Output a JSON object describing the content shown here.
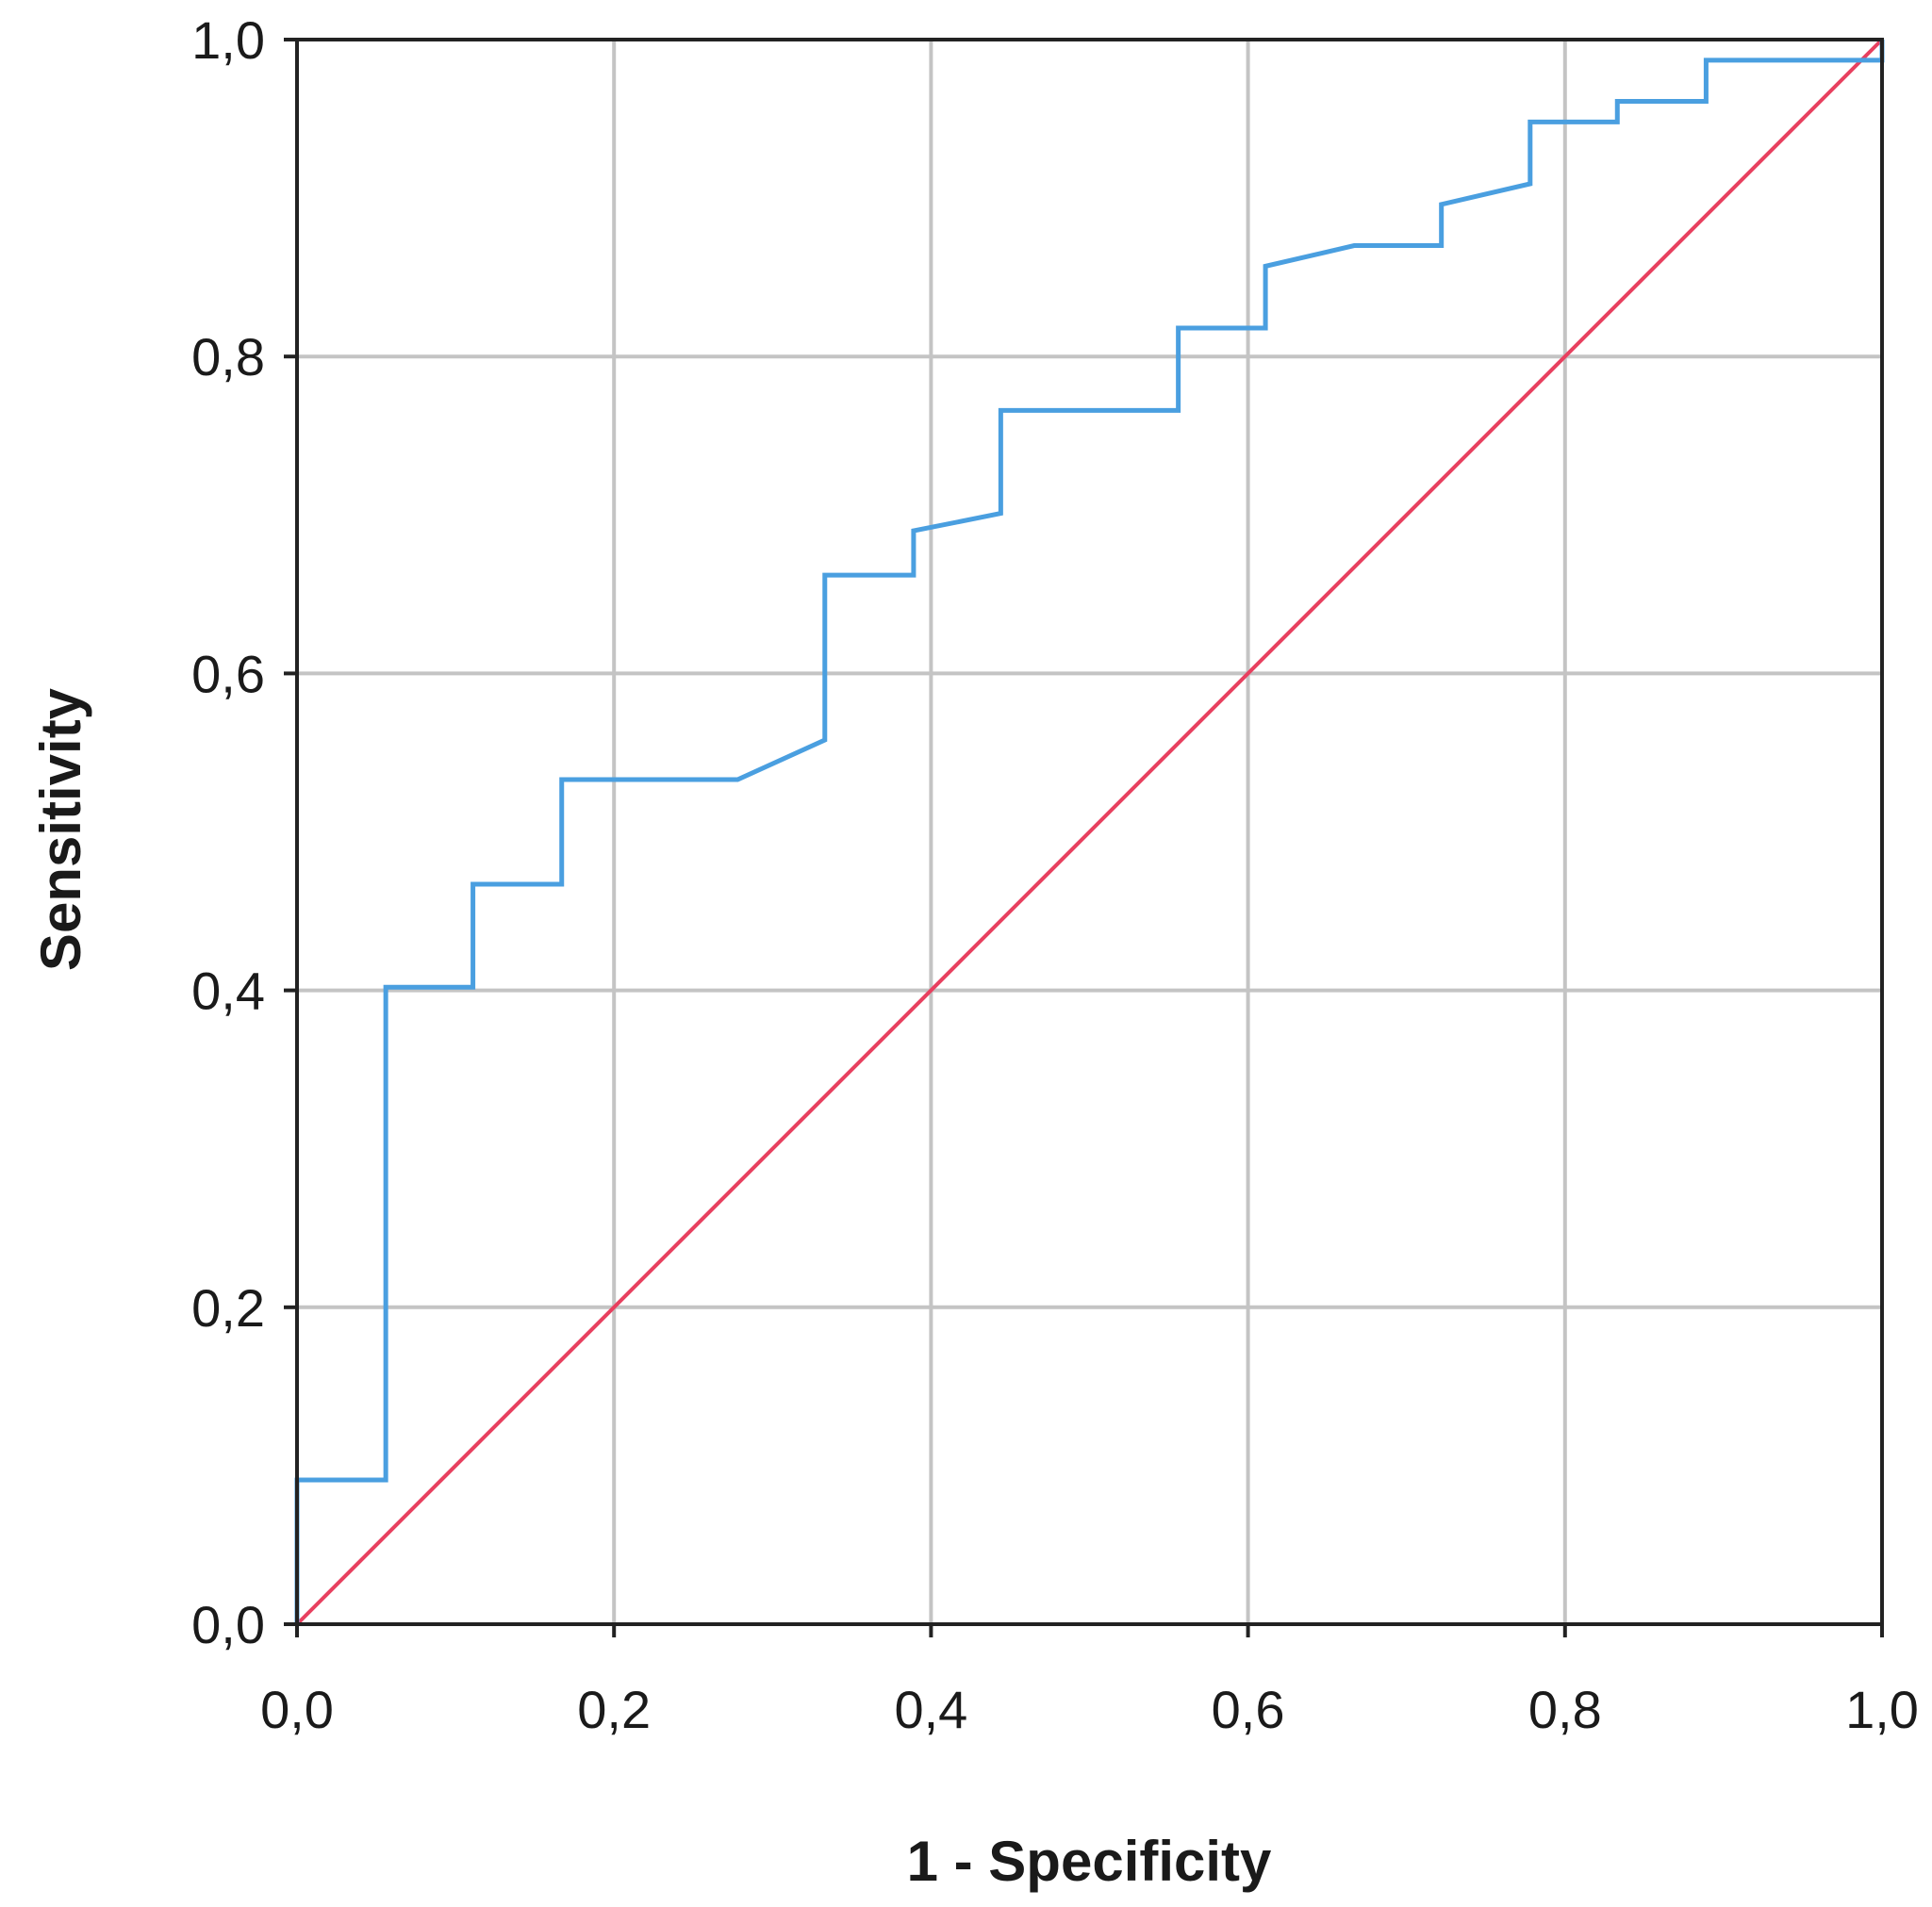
{
  "chart_data": {
    "type": "line",
    "title": "",
    "xlabel": "1 - Specificity",
    "ylabel": "Sensitivity",
    "xlim": [
      0,
      1
    ],
    "ylim": [
      0,
      1
    ],
    "x_ticks": [
      "0,0",
      "0,2",
      "0,4",
      "0,6",
      "0,8",
      "1,0"
    ],
    "y_ticks": [
      "0,0",
      "0,2",
      "0,4",
      "0,6",
      "0,8",
      "1,0"
    ],
    "x_tick_values": [
      0,
      0.2,
      0.4,
      0.6,
      0.8,
      1.0
    ],
    "y_tick_values": [
      0,
      0.2,
      0.4,
      0.6,
      0.8,
      1.0
    ],
    "grid": true,
    "legend": "none",
    "colors": {
      "roc": "#4a9fe0",
      "reference": "#e8405f"
    },
    "series": [
      {
        "values": [
          [
            0.0,
            0.0
          ],
          [
            0.0,
            0.091
          ],
          [
            0.056,
            0.091
          ],
          [
            0.056,
            0.402
          ],
          [
            0.111,
            0.402
          ],
          [
            0.111,
            0.467
          ],
          [
            0.167,
            0.467
          ],
          [
            0.167,
            0.533
          ],
          [
            0.278,
            0.533
          ],
          [
            0.333,
            0.558
          ],
          [
            0.333,
            0.662
          ],
          [
            0.389,
            0.662
          ],
          [
            0.389,
            0.69
          ],
          [
            0.444,
            0.701
          ],
          [
            0.444,
            0.766
          ],
          [
            0.556,
            0.766
          ],
          [
            0.556,
            0.818
          ],
          [
            0.611,
            0.818
          ],
          [
            0.611,
            0.857
          ],
          [
            0.667,
            0.87
          ],
          [
            0.722,
            0.87
          ],
          [
            0.722,
            0.896
          ],
          [
            0.778,
            0.909
          ],
          [
            0.778,
            0.948
          ],
          [
            0.833,
            0.948
          ],
          [
            0.833,
            0.961
          ],
          [
            0.889,
            0.961
          ],
          [
            0.889,
            0.987
          ],
          [
            1.0,
            0.987
          ],
          [
            1.0,
            1.0
          ]
        ]
      },
      {
        "values": [
          [
            0,
            0
          ],
          [
            1,
            1
          ]
        ]
      }
    ]
  }
}
